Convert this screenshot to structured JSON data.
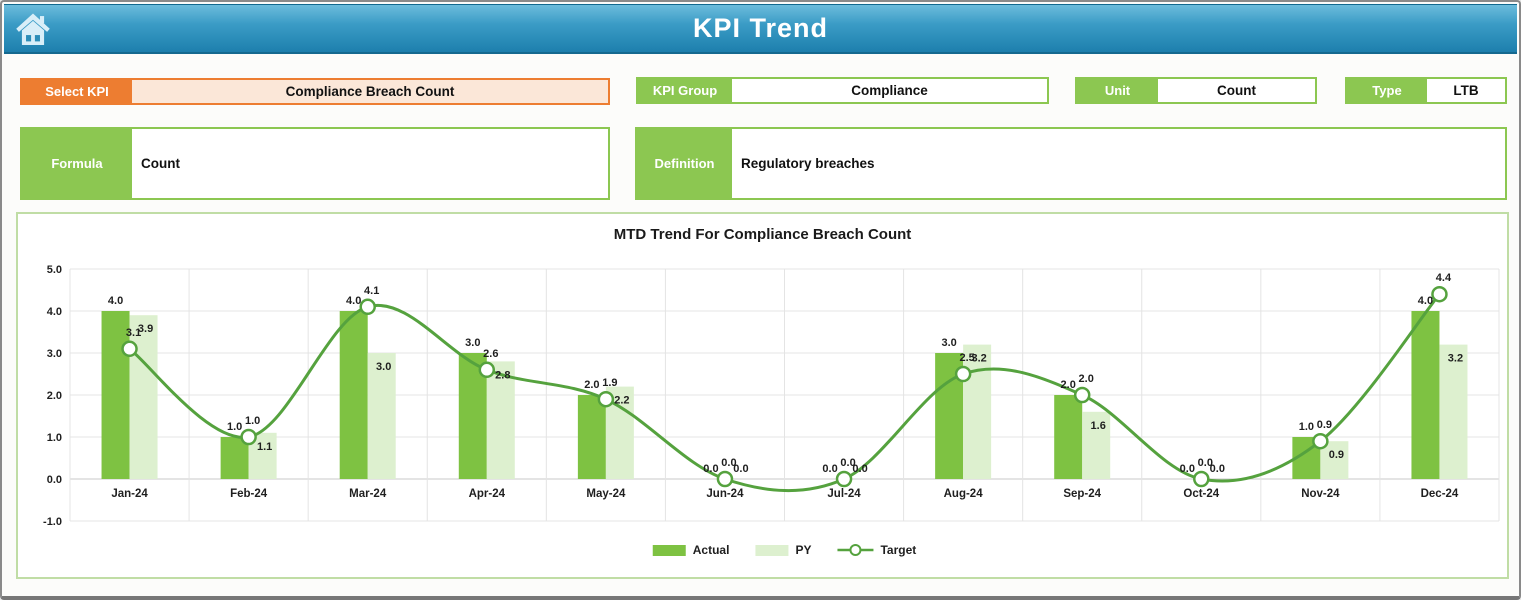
{
  "header": {
    "title": "KPI Trend",
    "home_icon": "home-icon"
  },
  "filters": {
    "select_kpi": {
      "label": "Select KPI",
      "value": "Compliance Breach Count"
    },
    "kpi_group": {
      "label": "KPI Group",
      "value": "Compliance"
    },
    "unit": {
      "label": "Unit",
      "value": "Count"
    },
    "type": {
      "label": "Type",
      "value": "LTB"
    },
    "formula": {
      "label": "Formula",
      "value": "Count"
    },
    "definition": {
      "label": "Definition",
      "value": "Regulatory breaches"
    }
  },
  "colors": {
    "header_blue_top": "#6cbcdc",
    "header_blue_bottom": "#1d7fad",
    "accent_orange": "#ED7D31",
    "accent_orange_fill": "#FBE7D8",
    "accent_green": "#8CC751",
    "chart_border_green": "#C0DDA5",
    "actual_bar": "#7EC242",
    "py_bar": "#DDF0CF",
    "target_line": "#55A23E",
    "gridline": "#E4E4E4",
    "zero_line": "#C8C8C8",
    "label_text": "#1F1F1F"
  },
  "chart_data": {
    "type": "bar",
    "subtype": "combo-bar-line",
    "title": "MTD Trend For Compliance Breach Count",
    "categories": [
      "Jan-24",
      "Feb-24",
      "Mar-24",
      "Apr-24",
      "May-24",
      "Jun-24",
      "Jul-24",
      "Aug-24",
      "Sep-24",
      "Oct-24",
      "Nov-24",
      "Dec-24"
    ],
    "series": [
      {
        "name": "Actual",
        "type": "bar",
        "color": "#7EC242",
        "values": [
          4.0,
          1.0,
          4.0,
          3.0,
          2.0,
          0.0,
          0.0,
          3.0,
          2.0,
          0.0,
          1.0,
          4.0
        ]
      },
      {
        "name": "PY",
        "type": "bar",
        "color": "#DDF0CF",
        "values": [
          3.9,
          1.1,
          3.0,
          2.8,
          2.2,
          0.0,
          0.0,
          3.2,
          1.6,
          0.0,
          0.9,
          3.2
        ]
      },
      {
        "name": "Target",
        "type": "line",
        "color": "#55A23E",
        "values": [
          3.1,
          1.0,
          4.1,
          2.6,
          1.9,
          0.0,
          0.0,
          2.5,
          2.0,
          0.0,
          0.9,
          4.4
        ]
      }
    ],
    "xlabel": "",
    "ylabel": "",
    "ylim": [
      -1.0,
      5.0
    ],
    "ytick_step": 1.0,
    "grid": true,
    "legend_position": "bottom",
    "data_labels_decimals": 1
  }
}
